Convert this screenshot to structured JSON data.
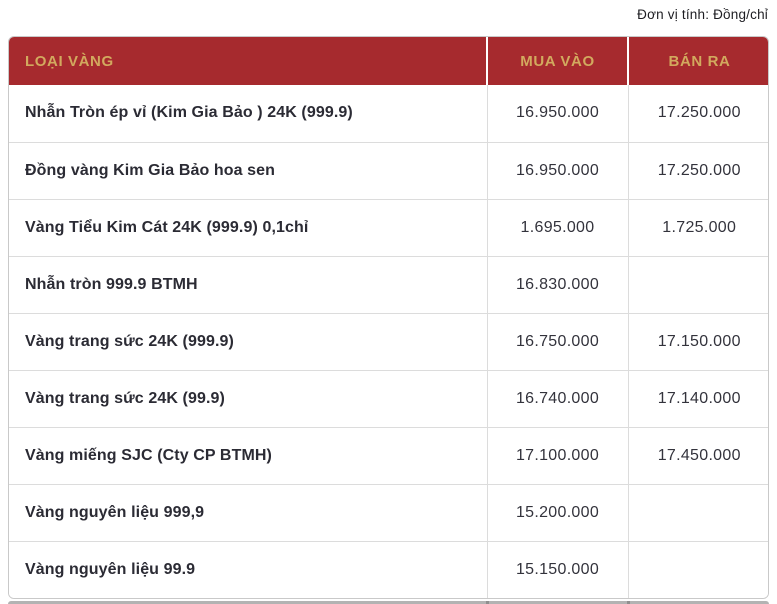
{
  "page": {
    "unit_note": "Đơn vị tính: Đồng/chỉ"
  },
  "table": {
    "headers": {
      "type": "LOẠI VÀNG",
      "buy": "MUA VÀO",
      "sell": "BÁN RA"
    },
    "rows": [
      {
        "label": "Nhẫn Tròn ép vỉ (Kim Gia Bảo ) 24K (999.9)",
        "buy": "16.950.000",
        "sell": "17.250.000"
      },
      {
        "label": "Đồng vàng Kim Gia Bảo hoa sen",
        "buy": "16.950.000",
        "sell": "17.250.000"
      },
      {
        "label": "Vàng Tiểu Kim Cát 24K (999.9) 0,1chỉ",
        "buy": "1.695.000",
        "sell": "1.725.000"
      },
      {
        "label": "Nhẫn tròn 999.9 BTMH",
        "buy": "16.830.000",
        "sell": ""
      },
      {
        "label": "Vàng trang sức 24K (999.9)",
        "buy": "16.750.000",
        "sell": "17.150.000"
      },
      {
        "label": "Vàng trang sức 24K (99.9)",
        "buy": "16.740.000",
        "sell": "17.140.000"
      },
      {
        "label": "Vàng miếng SJC (Cty CP BTMH)",
        "buy": "17.100.000",
        "sell": "17.450.000"
      },
      {
        "label": "Vàng nguyên liệu 999,9",
        "buy": "15.200.000",
        "sell": ""
      },
      {
        "label": "Vàng nguyên liệu 99.9",
        "buy": "15.150.000",
        "sell": ""
      }
    ]
  },
  "colors": {
    "header_bg": "#a62a2e",
    "header_text": "#d2a95e",
    "grid_border": "#dcdcdc",
    "body_text": "#2b2b34"
  }
}
